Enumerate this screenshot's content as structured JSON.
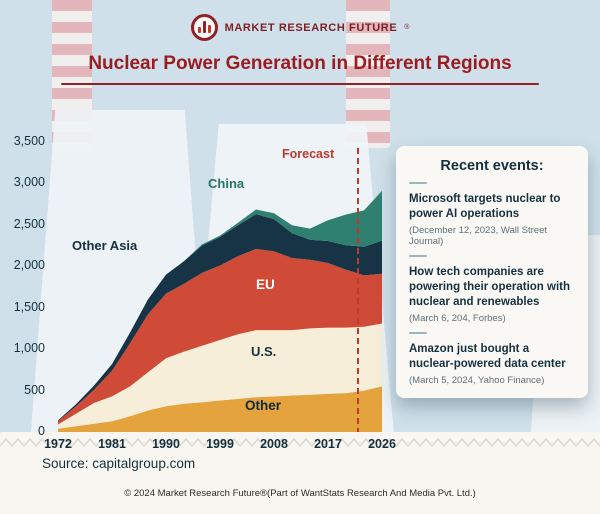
{
  "header": {
    "brand": "MARKET RESEARCH FUTURE",
    "brand_reg": "®",
    "title": "Nuclear Power Generation in Different Regions"
  },
  "icons": {
    "logo": "bar-chart-circle-icon",
    "forecast_divider": "dashed-vertical-line"
  },
  "chart_data": {
    "type": "area",
    "stacked": true,
    "title": "Nuclear Power Generation in Different Regions",
    "xlabel": "",
    "ylabel": "",
    "legend": "inline-labels",
    "grid": false,
    "ylim": [
      0,
      3500
    ],
    "yticks": [
      "0",
      "500",
      "1,000",
      "1,500",
      "2,000",
      "2,500",
      "3,000",
      "3,500"
    ],
    "xticks": [
      "1972",
      "1981",
      "1990",
      "1999",
      "2008",
      "2017",
      "2026"
    ],
    "x": [
      1972,
      1975,
      1978,
      1981,
      1984,
      1987,
      1990,
      1993,
      1996,
      1999,
      2002,
      2005,
      2008,
      2011,
      2014,
      2017,
      2020,
      2023,
      2026
    ],
    "series": [
      {
        "name": "Other",
        "color": "#e4a33c",
        "values": [
          40,
          70,
          100,
          130,
          190,
          260,
          310,
          340,
          360,
          380,
          400,
          420,
          430,
          440,
          450,
          460,
          470,
          500,
          550
        ]
      },
      {
        "name": "U.S.",
        "color": "#f6eed8",
        "values": [
          50,
          150,
          250,
          300,
          360,
          460,
          580,
          630,
          680,
          730,
          780,
          810,
          800,
          790,
          800,
          800,
          790,
          770,
          760
        ]
      },
      {
        "name": "EU",
        "color": "#cf4b37",
        "values": [
          40,
          90,
          160,
          310,
          520,
          700,
          780,
          820,
          880,
          900,
          940,
          980,
          950,
          870,
          830,
          780,
          700,
          620,
          600
        ]
      },
      {
        "name": "Other Asia",
        "color": "#163445",
        "values": [
          10,
          25,
          50,
          80,
          130,
          180,
          230,
          270,
          330,
          345,
          375,
          420,
          390,
          300,
          240,
          265,
          295,
          345,
          400
        ]
      },
      {
        "name": "China",
        "color": "#2f8070",
        "values": [
          0,
          0,
          0,
          0,
          0,
          0,
          0,
          2,
          14,
          15,
          30,
          55,
          70,
          95,
          135,
          250,
          370,
          440,
          600
        ]
      }
    ],
    "forecast": {
      "label": "Forecast",
      "year": 2022,
      "color": "#c0392b"
    }
  },
  "events": {
    "title": "Recent events:",
    "items": [
      {
        "title": "Microsoft targets nuclear to power AI operations",
        "source": "(December 12, 2023, Wall Street Journal)"
      },
      {
        "title": "How tech companies are powering their operation with nuclear and renewables",
        "source": "(March 6, 204, Forbes)"
      },
      {
        "title": "Amazon just bought a nuclear-powered data center",
        "source": "(March 5, 2024, Yahoo Finance)"
      }
    ]
  },
  "footer": {
    "source": "Source: capitalgroup.com",
    "copyright": "© 2024 Market Research Future®(Part of WantStats Research And Media Pvt. Ltd.)"
  }
}
